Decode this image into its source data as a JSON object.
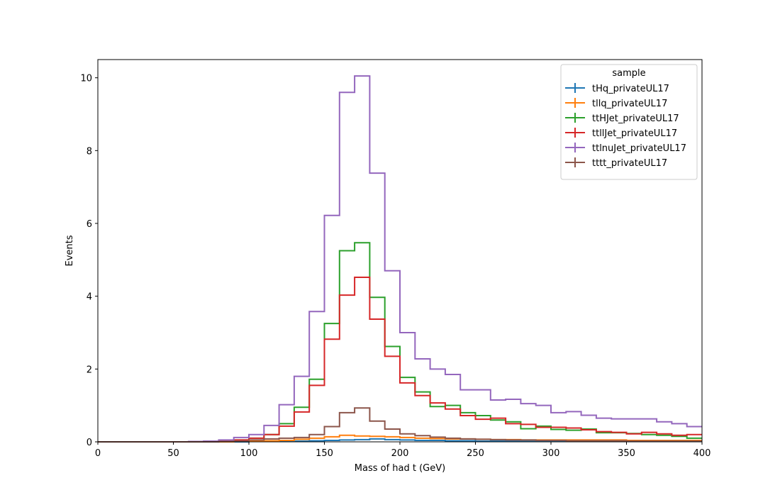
{
  "chart_data": {
    "type": "step-histogram",
    "xlabel": "Mass of had t (GeV)",
    "ylabel": "Events",
    "xlim": [
      0,
      400
    ],
    "ylim": [
      0,
      10.5
    ],
    "xticks": [
      0,
      50,
      100,
      150,
      200,
      250,
      300,
      350,
      400
    ],
    "yticks": [
      0,
      2,
      4,
      6,
      8,
      10
    ],
    "grid": false,
    "legend": {
      "title": "sample",
      "placement": "top-right"
    },
    "bin_edges": [
      0,
      10,
      20,
      30,
      40,
      50,
      60,
      70,
      80,
      90,
      100,
      110,
      120,
      130,
      140,
      150,
      160,
      170,
      180,
      190,
      200,
      210,
      220,
      230,
      240,
      250,
      260,
      270,
      280,
      290,
      300,
      310,
      320,
      330,
      340,
      350,
      360,
      370,
      380,
      390,
      400
    ],
    "series": [
      {
        "name": "tHq_privateUL17",
        "color": "#1f77b4",
        "values": [
          0,
          0,
          0,
          0,
          0,
          0,
          0,
          0,
          0,
          0,
          0.01,
          0.01,
          0.02,
          0.02,
          0.03,
          0.04,
          0.05,
          0.06,
          0.08,
          0.06,
          0.05,
          0.04,
          0.04,
          0.03,
          0.03,
          0.02,
          0.02,
          0.02,
          0.02,
          0.01,
          0.01,
          0.01,
          0.01,
          0.01,
          0.01,
          0.01,
          0.01,
          0.01,
          0.01,
          0.01
        ]
      },
      {
        "name": "tllq_privateUL17",
        "color": "#ff7f0e",
        "values": [
          0,
          0,
          0,
          0,
          0,
          0,
          0,
          0,
          0,
          0.01,
          0.02,
          0.03,
          0.04,
          0.07,
          0.1,
          0.14,
          0.18,
          0.16,
          0.15,
          0.14,
          0.12,
          0.1,
          0.09,
          0.08,
          0.08,
          0.07,
          0.06,
          0.06,
          0.05,
          0.05,
          0.05,
          0.05,
          0.05,
          0.05,
          0.05,
          0.04,
          0.04,
          0.04,
          0.04,
          0.04
        ]
      },
      {
        "name": "ttHJet_privateUL17",
        "color": "#2ca02c",
        "values": [
          0,
          0,
          0,
          0,
          0,
          0,
          0,
          0,
          0.02,
          0.05,
          0.1,
          0.2,
          0.5,
          0.95,
          1.72,
          3.25,
          5.25,
          5.47,
          3.97,
          2.62,
          1.77,
          1.37,
          0.97,
          1.0,
          0.8,
          0.72,
          0.6,
          0.55,
          0.36,
          0.43,
          0.34,
          0.32,
          0.35,
          0.25,
          0.25,
          0.23,
          0.2,
          0.18,
          0.15,
          0.1
        ]
      },
      {
        "name": "ttllJet_privateUL17",
        "color": "#d62728",
        "values": [
          0,
          0,
          0,
          0,
          0,
          0,
          0,
          0,
          0.02,
          0.05,
          0.1,
          0.2,
          0.43,
          0.82,
          1.55,
          2.82,
          4.03,
          4.52,
          3.37,
          2.35,
          1.62,
          1.27,
          1.07,
          0.9,
          0.72,
          0.62,
          0.65,
          0.5,
          0.48,
          0.4,
          0.4,
          0.38,
          0.33,
          0.28,
          0.26,
          0.22,
          0.26,
          0.22,
          0.18,
          0.2
        ]
      },
      {
        "name": "ttlnuJet_privateUL17",
        "color": "#9467bd",
        "values": [
          0,
          0,
          0,
          0,
          0,
          0,
          0.01,
          0.02,
          0.05,
          0.12,
          0.2,
          0.45,
          1.02,
          1.8,
          3.58,
          6.22,
          9.6,
          10.05,
          7.38,
          4.7,
          3.0,
          2.28,
          2.0,
          1.85,
          1.43,
          1.43,
          1.15,
          1.17,
          1.05,
          1.0,
          0.8,
          0.83,
          0.73,
          0.65,
          0.63,
          0.63,
          0.63,
          0.55,
          0.5,
          0.42
        ]
      },
      {
        "name": "tttt_privateUL17",
        "color": "#8c564b",
        "values": [
          0,
          0,
          0,
          0,
          0,
          0,
          0,
          0,
          0.01,
          0.02,
          0.05,
          0.08,
          0.1,
          0.12,
          0.2,
          0.42,
          0.8,
          0.93,
          0.57,
          0.35,
          0.22,
          0.17,
          0.13,
          0.1,
          0.08,
          0.07,
          0.06,
          0.05,
          0.05,
          0.04,
          0.04,
          0.03,
          0.03,
          0.03,
          0.03,
          0.02,
          0.02,
          0.02,
          0.02,
          0.02
        ]
      }
    ]
  }
}
